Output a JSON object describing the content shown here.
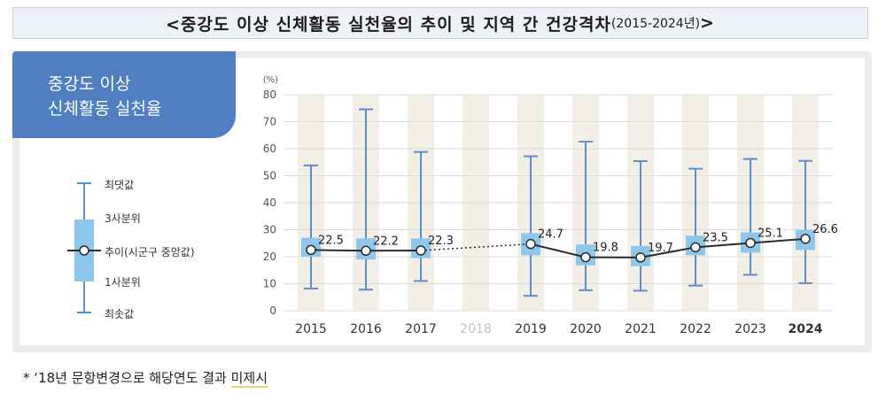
{
  "title": {
    "main": "<중강도 이상 신체활동 실천율의 추이 및 지역 간 건강격차",
    "sub": "(2015-2024년)",
    "end": ">"
  },
  "badge": {
    "line1": "중강도 이상",
    "line2": "신체활동 실천율"
  },
  "legend": {
    "max": "최댓값",
    "q3": "3사분위",
    "median": "추이(시군구 중앙값)",
    "q1": "1사분위",
    "min": "최솟값"
  },
  "footnote": {
    "prefix": "*  ‘18년 문항변경으로 해당연도 결과 ",
    "highlight": "미제시"
  },
  "colors": {
    "accent": "#4f7fc0",
    "whisker": "#5b8fd0",
    "box": "#8ec7ec",
    "column": "#f3efe6",
    "line": "#2b2b2b"
  },
  "chart_data": {
    "type": "box",
    "yunit": "(%)",
    "ylim": [
      0,
      80
    ],
    "yticks": [
      0,
      10,
      20,
      30,
      40,
      50,
      60,
      70,
      80
    ],
    "categories": [
      "2015",
      "2016",
      "2017",
      "2018",
      "2019",
      "2020",
      "2021",
      "2022",
      "2023",
      "2024"
    ],
    "median": [
      22.5,
      22.2,
      22.3,
      null,
      24.7,
      19.8,
      19.7,
      23.5,
      25.1,
      26.6
    ],
    "median_labels": [
      "22.5",
      "22.2",
      "22.3",
      "",
      "24.7",
      "19.8",
      "19.7",
      "23.5",
      "25.1",
      "26.6"
    ],
    "q1": [
      20.0,
      19.0,
      19.5,
      null,
      20.5,
      16.8,
      16.5,
      20.5,
      21.5,
      22.5
    ],
    "q3": [
      27.0,
      26.8,
      26.8,
      null,
      28.7,
      24.5,
      24.0,
      27.8,
      29.0,
      30.0
    ],
    "min": [
      8.2,
      7.8,
      11.0,
      null,
      5.5,
      7.6,
      7.4,
      9.3,
      13.3,
      10.2
    ],
    "max": [
      53.8,
      74.6,
      58.8,
      null,
      57.2,
      62.6,
      55.4,
      52.6,
      56.2,
      55.5
    ],
    "missing_category": "2018",
    "emphasized_category": "2024",
    "gap_line": "dotted"
  }
}
